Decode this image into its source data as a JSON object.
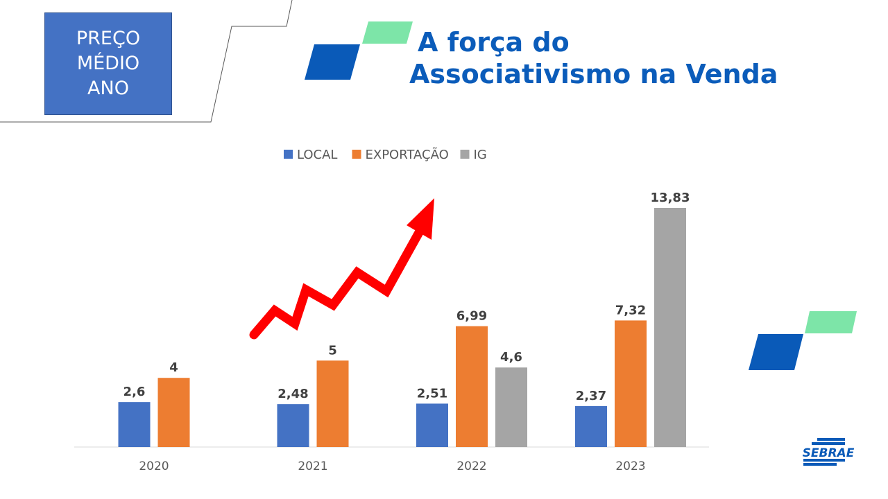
{
  "header": {
    "badge_lines": [
      "PREÇO",
      "MÉDIO",
      "ANO"
    ],
    "title_line1": "A força do",
    "title_line2": "Associativismo na Venda"
  },
  "brand": {
    "logo_text": "SEBRAE"
  },
  "colors": {
    "badge": "#4472c4",
    "title": "#0b5cba",
    "logo_dark": "#0a5ab8",
    "logo_light": "#7de5a8",
    "arrow": "#ff0000"
  },
  "chart_data": {
    "type": "bar",
    "categories": [
      "2020",
      "2021",
      "2022",
      "2023"
    ],
    "series": [
      {
        "name": "LOCAL",
        "color": "#4472c4",
        "values": [
          2.6,
          2.48,
          2.51,
          2.37
        ],
        "labels": [
          "2,6",
          "2,48",
          "2,51",
          "2,37"
        ]
      },
      {
        "name": "EXPORTAÇÃO",
        "color": "#ed7d31",
        "values": [
          4,
          5,
          6.99,
          7.32
        ],
        "labels": [
          "4",
          "5",
          "6,99",
          "7,32"
        ]
      },
      {
        "name": "IG",
        "color": "#a5a5a5",
        "values": [
          null,
          null,
          4.6,
          13.83
        ],
        "labels": [
          "",
          "",
          "4,6",
          "13,83"
        ]
      }
    ],
    "legend_position": "top",
    "ylim": [
      0,
      14
    ],
    "grid": false,
    "annotation": "red upward zigzag arrow"
  }
}
